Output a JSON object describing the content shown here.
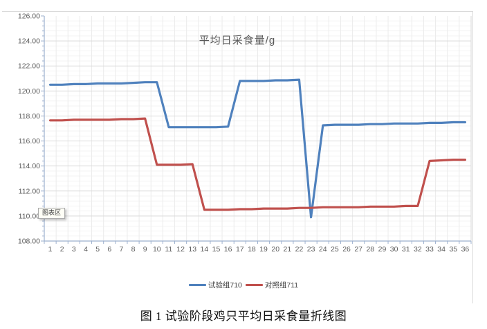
{
  "tooltip": {
    "text": "图表区"
  },
  "caption": {
    "text": "图 1 试验阶段鸡只平均日采食量折线图"
  },
  "colors": {
    "series_blue": "#4F81BD",
    "series_red": "#C0504D",
    "grid_major": "#D9D9D9",
    "grid_minor": "#F3F3F3",
    "grid_vertical": "#EBEBEB",
    "axis_line": "#9CB0CE",
    "tick_label": "#595959",
    "frame_border": "#D9D9D9"
  },
  "chart_data": {
    "type": "line",
    "title": "平均日采食量/g",
    "xlabel": "",
    "ylabel": "",
    "ylim": [
      108,
      126
    ],
    "ytick_step": 2,
    "y_minor_step": 0.4,
    "grid": true,
    "legend_position": "bottom",
    "y_tick_labels": [
      "126.00",
      "124.00",
      "122.00",
      "120.00",
      "118.00",
      "116.00",
      "114.00",
      "112.00",
      "110.00",
      "108.00"
    ],
    "categories": [
      1,
      2,
      3,
      4,
      5,
      6,
      7,
      8,
      9,
      10,
      11,
      12,
      13,
      14,
      15,
      16,
      17,
      18,
      19,
      20,
      21,
      22,
      23,
      24,
      25,
      26,
      27,
      28,
      29,
      30,
      31,
      32,
      33,
      34,
      35,
      36
    ],
    "series": [
      {
        "name": "试验组710",
        "color": "#4F81BD",
        "values": [
          120.5,
          120.5,
          120.55,
          120.55,
          120.6,
          120.6,
          120.6,
          120.65,
          120.7,
          120.7,
          117.1,
          117.1,
          117.1,
          117.1,
          117.1,
          117.15,
          120.8,
          120.8,
          120.8,
          120.85,
          120.85,
          120.9,
          109.9,
          117.25,
          117.3,
          117.3,
          117.3,
          117.35,
          117.35,
          117.4,
          117.4,
          117.4,
          117.45,
          117.45,
          117.5,
          117.5
        ]
      },
      {
        "name": "对照组711",
        "color": "#C0504D",
        "values": [
          117.65,
          117.65,
          117.7,
          117.7,
          117.7,
          117.7,
          117.75,
          117.75,
          117.8,
          114.1,
          114.1,
          114.1,
          114.15,
          110.5,
          110.5,
          110.5,
          110.55,
          110.55,
          110.6,
          110.6,
          110.6,
          110.65,
          110.65,
          110.7,
          110.7,
          110.7,
          110.7,
          110.75,
          110.75,
          110.75,
          110.8,
          110.8,
          114.4,
          114.45,
          114.5,
          114.5
        ]
      }
    ]
  }
}
